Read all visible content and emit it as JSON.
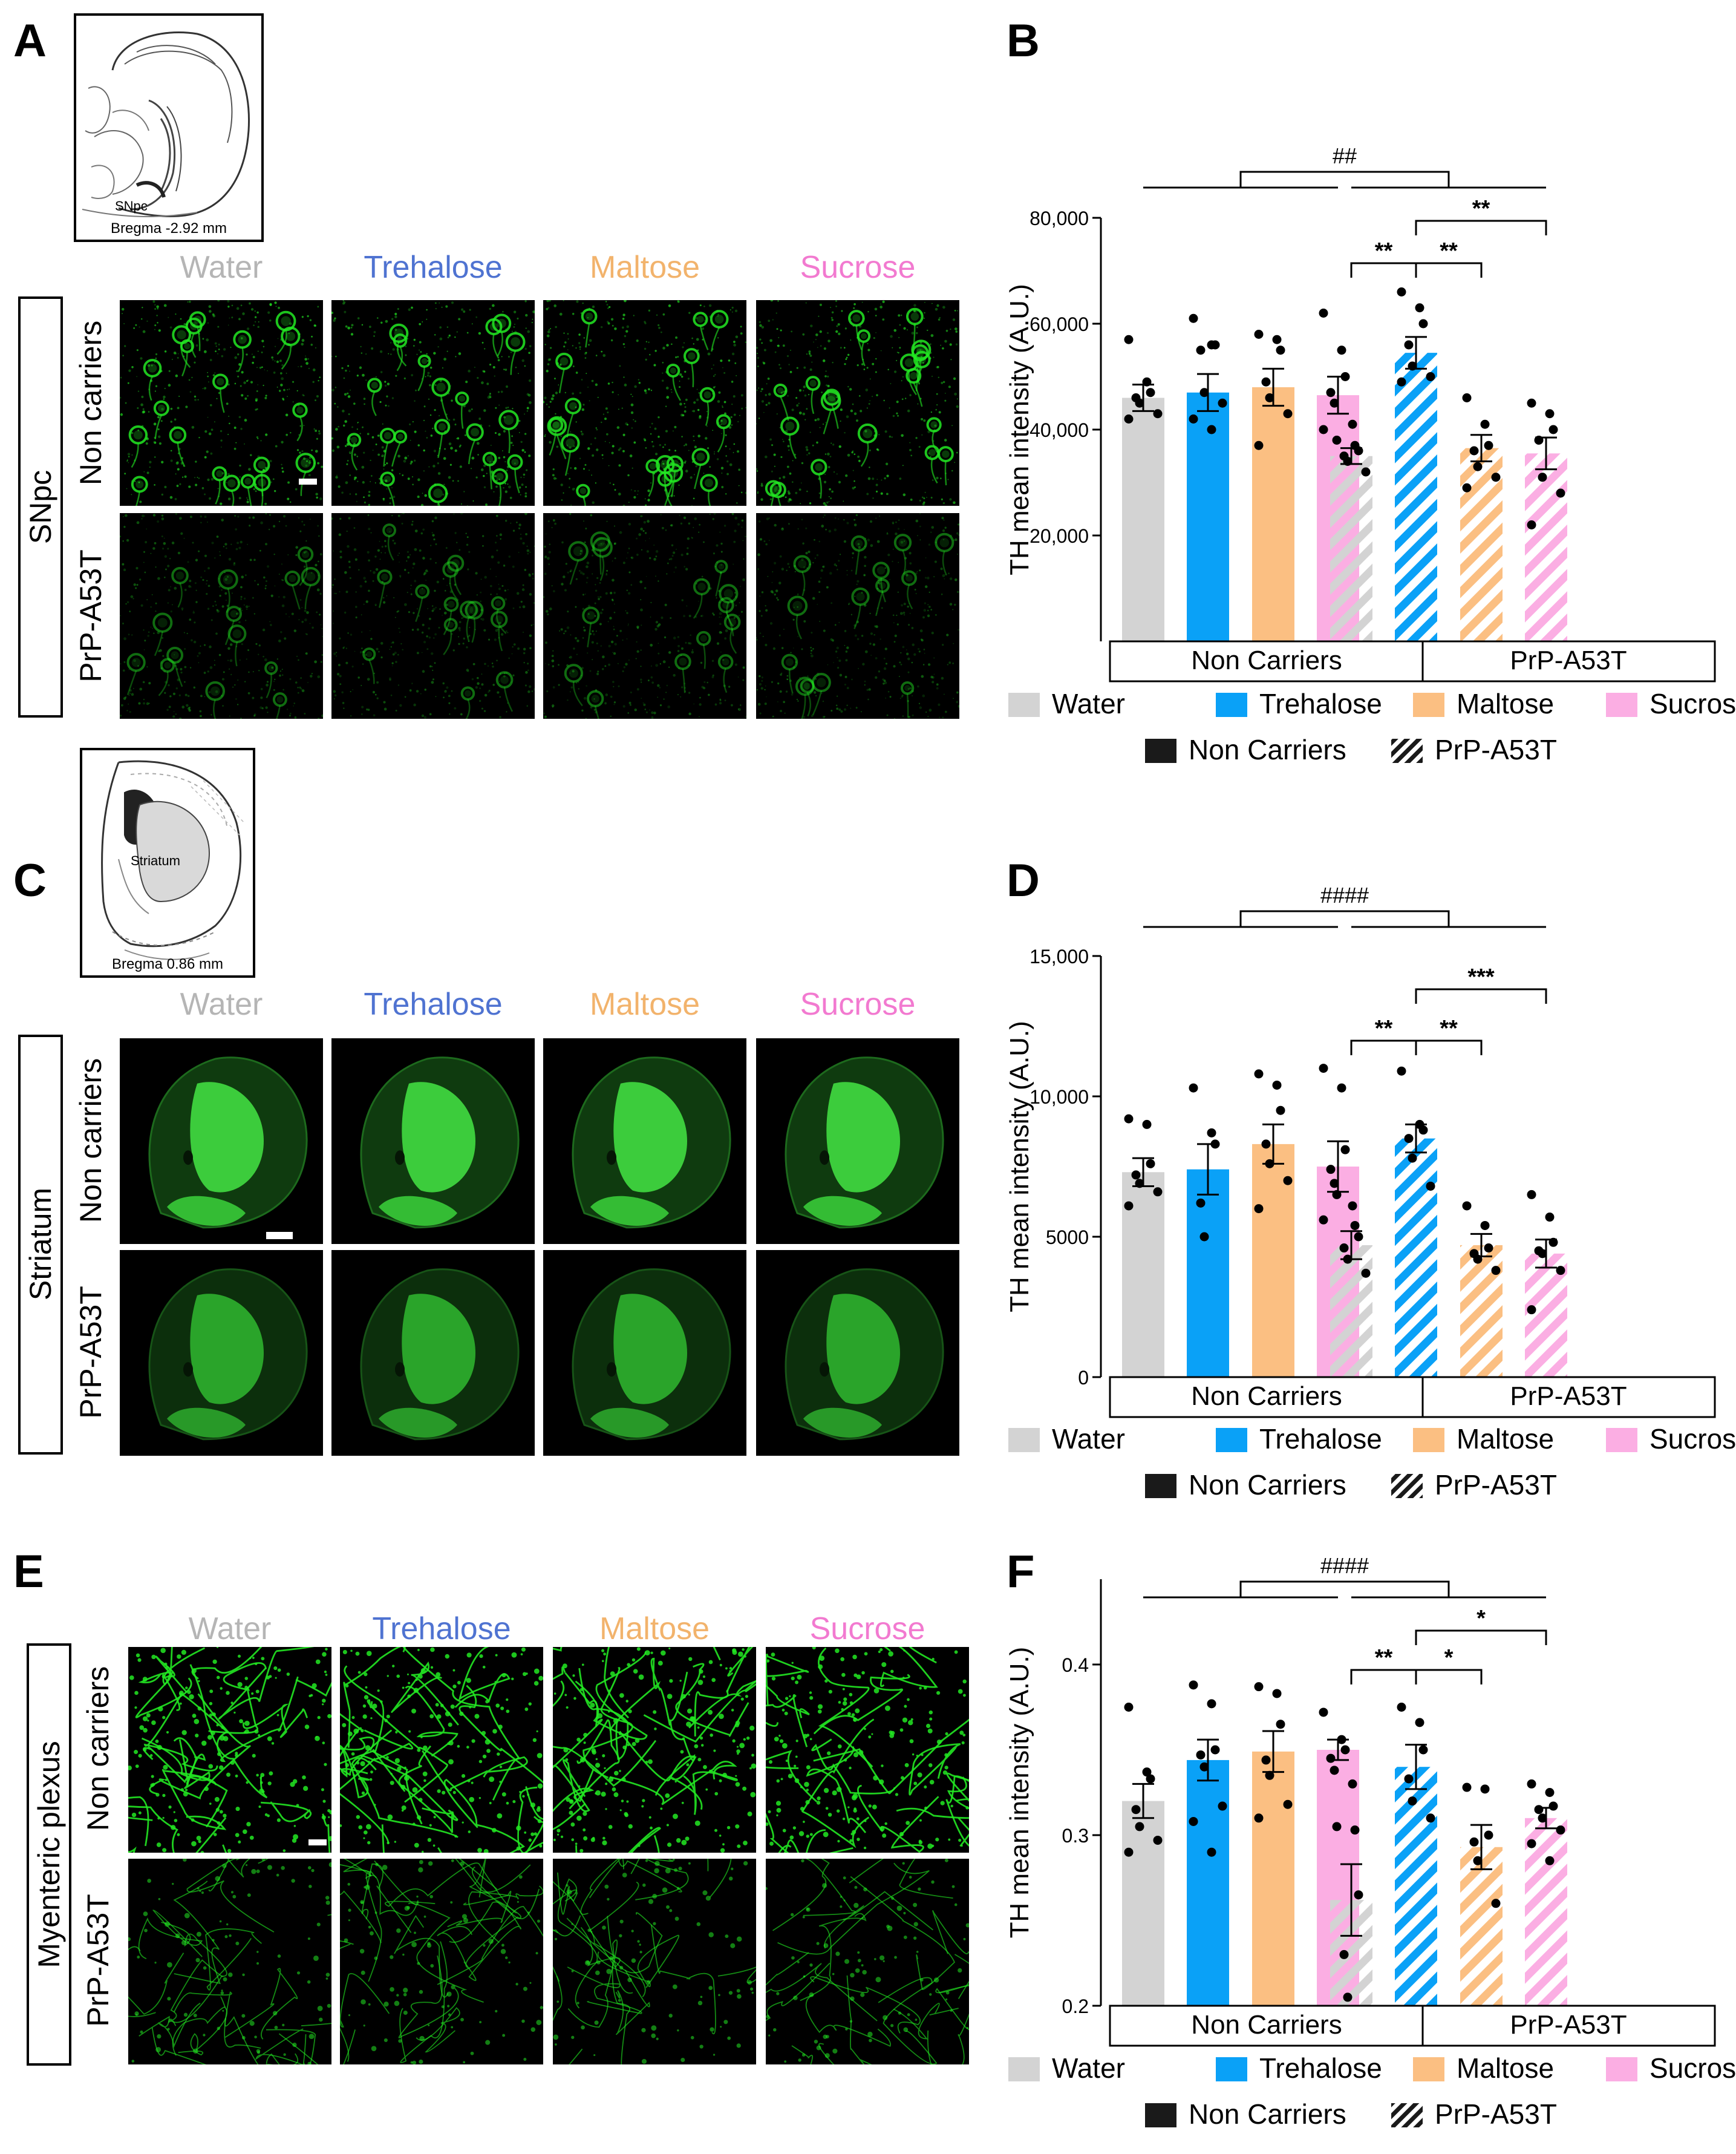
{
  "colors": {
    "water": "#d3d3d3",
    "trehalose": "#0aa1f7",
    "maltose": "#fbbf82",
    "sucrose": "#fbaee3",
    "non_carriers_legend": "#1a1a1a",
    "header_water": "#b5b5b5",
    "header_trehalose": "#4f73d1",
    "header_maltose": "#f2b36c",
    "header_sucrose": "#f27ad0",
    "fluorescence": "#22e722"
  },
  "panel_letters": {
    "A": "A",
    "B": "B",
    "C": "C",
    "D": "D",
    "E": "E",
    "F": "F"
  },
  "columns": [
    "Water",
    "Trehalose",
    "Maltose",
    "Sucrose"
  ],
  "panel_A": {
    "atlas_region": "SNpc",
    "atlas_caption": "Bregma -2.92 mm",
    "row_group": "SNpc",
    "rows": [
      "Non carriers",
      "PrP-A53T"
    ]
  },
  "panel_C": {
    "atlas_region": "Striatum",
    "atlas_caption": "Bregma 0.86 mm",
    "row_group": "Striatum",
    "rows": [
      "Non carriers",
      "PrP-A53T"
    ]
  },
  "panel_E": {
    "row_group": "Myenteric plexus",
    "rows": [
      "Non carriers",
      "PrP-A53T"
    ]
  },
  "legend": {
    "treatments": [
      "Water",
      "Trehalose",
      "Maltose",
      "Sucrose"
    ],
    "genotypes": [
      "Non Carriers",
      "PrP-A53T"
    ]
  },
  "chart_data": [
    {
      "panel": "B",
      "type": "bar",
      "ylabel": "TH mean intensity (A.U.)",
      "ylim": [
        0,
        80000
      ],
      "yticks": [
        20000,
        40000,
        60000,
        80000
      ],
      "ytick_labels": [
        "20,000",
        "40,000",
        "60,000",
        "80,000"
      ],
      "groups": [
        "Non Carriers",
        "PrP-A53T"
      ],
      "categories": [
        "Water",
        "Trehalose",
        "Maltose",
        "Sucrose"
      ],
      "series": [
        {
          "name": "Non Carriers",
          "values": [
            46000,
            47000,
            48000,
            46500
          ],
          "sem": [
            2500,
            3500,
            3500,
            3500
          ],
          "points": [
            [
              57000,
              49000,
              47000,
              46000,
              45000,
              43000,
              42000
            ],
            [
              61000,
              56000,
              56000,
              55000,
              47000,
              45000,
              42000,
              40000
            ],
            [
              58000,
              57000,
              55000,
              49000,
              46000,
              43000,
              37000
            ],
            [
              62000,
              55000,
              50000,
              47000,
              45000,
              41000,
              40000
            ]
          ]
        },
        {
          "name": "PrP-A53T",
          "values": [
            35000,
            54500,
            36500,
            35500
          ],
          "sem": [
            1500,
            3000,
            2500,
            3000
          ],
          "points": [
            [
              38000,
              37000,
              36000,
              35000,
              34000,
              32000
            ],
            [
              66000,
              63000,
              60000,
              56000,
              52000,
              50000,
              49000
            ],
            [
              46000,
              41000,
              37000,
              36000,
              33000,
              31000,
              29000
            ],
            [
              45000,
              43000,
              40000,
              38000,
              31000,
              28000,
              22000
            ]
          ]
        }
      ],
      "group_annotation": "##",
      "significance": [
        {
          "from": 0,
          "to": 1,
          "label": "**"
        },
        {
          "from": 1,
          "to": 2,
          "label": "**"
        },
        {
          "from": 1,
          "to": 3,
          "label": "**"
        }
      ]
    },
    {
      "panel": "D",
      "type": "bar",
      "ylabel": "TH mean intensity (A.U.)",
      "ylim": [
        0,
        15000
      ],
      "yticks": [
        0,
        5000,
        10000,
        15000
      ],
      "ytick_labels": [
        "0",
        "5000",
        "10,000",
        "15,000"
      ],
      "groups": [
        "Non Carriers",
        "PrP-A53T"
      ],
      "categories": [
        "Water",
        "Trehalose",
        "Maltose",
        "Sucrose"
      ],
      "series": [
        {
          "name": "Non Carriers",
          "values": [
            7300,
            7400,
            8300,
            7500
          ],
          "sem": [
            500,
            900,
            700,
            900
          ],
          "points": [
            [
              9200,
              9000,
              7600,
              7200,
              6900,
              6600,
              6100
            ],
            [
              10300,
              8700,
              8300,
              6200,
              5000
            ],
            [
              10800,
              10400,
              9500,
              8300,
              7600,
              7000,
              6000
            ],
            [
              11000,
              10300,
              8100,
              7400,
              6900,
              6100,
              5600
            ]
          ]
        },
        {
          "name": "PrP-A53T",
          "values": [
            4700,
            8500,
            4700,
            4400
          ],
          "sem": [
            500,
            500,
            400,
            500
          ],
          "points": [
            [
              6500,
              5400,
              5000,
              4600,
              4200,
              3700
            ],
            [
              10900,
              9000,
              8800,
              8500,
              7800,
              6800
            ],
            [
              6100,
              5400,
              4600,
              4400,
              4200,
              3800
            ],
            [
              6500,
              5700,
              4800,
              4500,
              4400,
              3800,
              2400
            ]
          ]
        }
      ],
      "group_annotation": "####",
      "significance": [
        {
          "from": 0,
          "to": 1,
          "label": "**"
        },
        {
          "from": 1,
          "to": 2,
          "label": "**"
        },
        {
          "from": 1,
          "to": 3,
          "label": "***"
        }
      ]
    },
    {
      "panel": "F",
      "type": "bar",
      "ylabel": "TH mean intensity (A.U.)",
      "ylim": [
        0.2,
        0.45
      ],
      "yticks": [
        0.2,
        0.3,
        0.4
      ],
      "ytick_labels": [
        "0.2",
        "0.3",
        "0.4"
      ],
      "groups": [
        "Non Carriers",
        "PrP-A53T"
      ],
      "categories": [
        "Water",
        "Trehalose",
        "Maltose",
        "Sucrose"
      ],
      "series": [
        {
          "name": "Non Carriers",
          "values": [
            0.32,
            0.344,
            0.349,
            0.35
          ],
          "sem": [
            0.01,
            0.012,
            0.012,
            0.006
          ],
          "points": [
            [
              0.375,
              0.337,
              0.333,
              0.315,
              0.305,
              0.297,
              0.29
            ],
            [
              0.388,
              0.377,
              0.35,
              0.347,
              0.34,
              0.317,
              0.308,
              0.29
            ],
            [
              0.387,
              0.383,
              0.365,
              0.344,
              0.335,
              0.318,
              0.31
            ],
            [
              0.372,
              0.356,
              0.35,
              0.345,
              0.338,
              0.33
            ]
          ]
        },
        {
          "name": "PrP-A53T",
          "values": [
            0.262,
            0.34,
            0.293,
            0.31
          ],
          "sem": [
            0.021,
            0.013,
            0.013,
            0.006
          ],
          "points": [
            [
              0.305,
              0.303,
              0.265,
              0.23,
              0.205
            ],
            [
              0.375,
              0.366,
              0.35,
              0.333,
              0.32,
              0.31
            ],
            [
              0.328,
              0.327,
              0.3,
              0.296,
              0.285,
              0.26
            ],
            [
              0.33,
              0.325,
              0.317,
              0.315,
              0.31,
              0.303,
              0.295,
              0.285
            ]
          ]
        }
      ],
      "group_annotation": "####",
      "significance": [
        {
          "from": 0,
          "to": 1,
          "label": "**"
        },
        {
          "from": 1,
          "to": 2,
          "label": "*"
        },
        {
          "from": 1,
          "to": 3,
          "label": "*"
        }
      ]
    }
  ]
}
